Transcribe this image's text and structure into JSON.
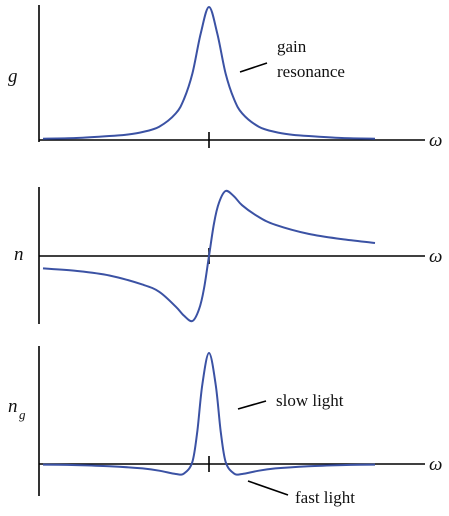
{
  "chart_data": [
    {
      "type": "line",
      "ylabel": "g",
      "xlabel": "ω",
      "annotations": [
        "gain",
        "resonance"
      ],
      "colors": {
        "curve": "#3b52a4",
        "axis": "#000000"
      },
      "x_range": [
        -10,
        10
      ],
      "center_tick": 0,
      "series": [
        {
          "x": [
            -10,
            -8,
            -6,
            -5,
            -4,
            -3,
            -2,
            -1.5,
            -1,
            -0.5,
            0,
            0.5,
            1,
            1.5,
            2,
            3,
            4,
            5,
            6,
            8,
            10
          ],
          "y": [
            0.01,
            0.015,
            0.03,
            0.04,
            0.06,
            0.1,
            0.2,
            0.31,
            0.5,
            0.8,
            1.0,
            0.8,
            0.5,
            0.31,
            0.2,
            0.1,
            0.06,
            0.04,
            0.03,
            0.015,
            0.01
          ]
        }
      ]
    },
    {
      "type": "line",
      "ylabel": "n",
      "xlabel": "ω",
      "colors": {
        "curve": "#3b52a4",
        "axis": "#000000"
      },
      "x_range": [
        -10,
        10
      ],
      "center_tick": 0,
      "series": [
        {
          "x": [
            -10,
            -8,
            -6,
            -4,
            -3,
            -2,
            -1.5,
            -1,
            -0.6,
            -0.3,
            0,
            0.3,
            0.6,
            1,
            1.5,
            2,
            3,
            4,
            6,
            8,
            10
          ],
          "y": [
            -0.19,
            -0.23,
            -0.3,
            -0.44,
            -0.55,
            -0.78,
            -0.92,
            -1.0,
            -0.82,
            -0.5,
            0,
            0.5,
            0.82,
            1.0,
            0.92,
            0.78,
            0.6,
            0.48,
            0.34,
            0.26,
            0.2
          ]
        }
      ]
    },
    {
      "type": "line",
      "ylabel": "n",
      "ylabel_subscript": "g",
      "xlabel": "ω",
      "annotations": [
        "slow light",
        "fast light"
      ],
      "colors": {
        "curve": "#3b52a4",
        "axis": "#000000"
      },
      "x_range": [
        -10,
        10
      ],
      "center_tick": 0,
      "series": [
        {
          "x": [
            -10,
            -8,
            -6,
            -4,
            -3,
            -2,
            -1.5,
            -1,
            -0.7,
            -0.4,
            0,
            0.4,
            0.7,
            1,
            1.5,
            2,
            3,
            4,
            6,
            8,
            10
          ],
          "y": [
            -0.005,
            -0.01,
            -0.02,
            -0.04,
            -0.06,
            -0.09,
            -0.085,
            0.02,
            0.3,
            0.72,
            1.0,
            0.72,
            0.3,
            0.02,
            -0.085,
            -0.09,
            -0.06,
            -0.04,
            -0.02,
            -0.01,
            -0.005
          ]
        }
      ]
    }
  ]
}
